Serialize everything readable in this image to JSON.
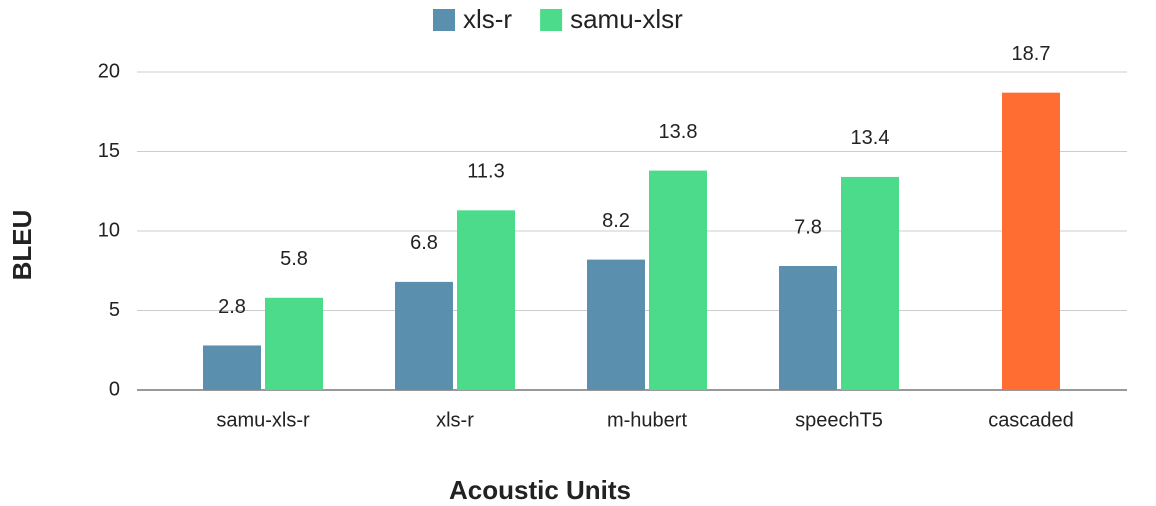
{
  "chart_data": {
    "type": "bar",
    "x_label": "Acoustic Units",
    "y_label": "BLEU",
    "categories": [
      "samu-xls-r",
      "xls-r",
      "m-hubert",
      "speechT5",
      "cascaded"
    ],
    "series": [
      {
        "name": "xls-r",
        "color": "#5a8fae",
        "values": [
          2.8,
          6.8,
          8.2,
          7.8,
          null
        ]
      },
      {
        "name": "samu-xlsr",
        "color": "#4cdb8a",
        "values": [
          5.8,
          11.3,
          13.8,
          13.4,
          null
        ]
      },
      {
        "color": "#ff6d33",
        "values": [
          null,
          null,
          null,
          null,
          18.7
        ]
      }
    ],
    "ylim": [
      0,
      20
    ],
    "yticks": [
      0,
      5,
      10,
      15,
      20
    ],
    "grid": true,
    "legend": "top"
  }
}
